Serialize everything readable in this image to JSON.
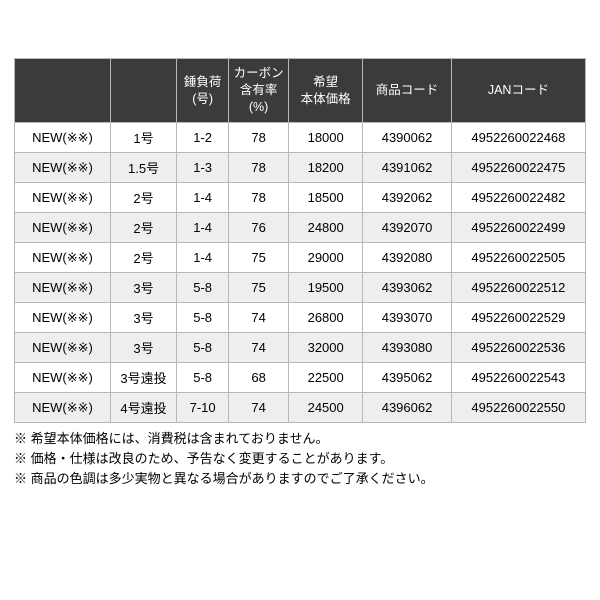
{
  "table": {
    "type": "table",
    "header_bg": "#3b3b3b",
    "header_fg": "#ffffff",
    "row_bg_odd": "#ffffff",
    "row_bg_even": "#eeeef1",
    "border_color": "#b7b7b7",
    "col_widths_pct": [
      16.8,
      11.6,
      9.1,
      10.5,
      13.0,
      15.5,
      23.5
    ],
    "columns": [
      "",
      "",
      "錘負荷\n(号)",
      "カーボン\n含有率\n(%)",
      "希望\n本体価格",
      "商品コード",
      "JANコード"
    ],
    "rows": [
      [
        "NEW(※※)",
        "1号",
        "1-2",
        "78",
        "18000",
        "4390062",
        "4952260022468"
      ],
      [
        "NEW(※※)",
        "1.5号",
        "1-3",
        "78",
        "18200",
        "4391062",
        "4952260022475"
      ],
      [
        "NEW(※※)",
        "2号",
        "1-4",
        "78",
        "18500",
        "4392062",
        "4952260022482"
      ],
      [
        "NEW(※※)",
        "2号",
        "1-4",
        "76",
        "24800",
        "4392070",
        "4952260022499"
      ],
      [
        "NEW(※※)",
        "2号",
        "1-4",
        "75",
        "29000",
        "4392080",
        "4952260022505"
      ],
      [
        "NEW(※※)",
        "3号",
        "5-8",
        "75",
        "19500",
        "4393062",
        "4952260022512"
      ],
      [
        "NEW(※※)",
        "3号",
        "5-8",
        "74",
        "26800",
        "4393070",
        "4952260022529"
      ],
      [
        "NEW(※※)",
        "3号",
        "5-8",
        "74",
        "32000",
        "4393080",
        "4952260022536"
      ],
      [
        "NEW(※※)",
        "3号遠投",
        "5-8",
        "68",
        "22500",
        "4395062",
        "4952260022543"
      ],
      [
        "NEW(※※)",
        "4号遠投",
        "7-10",
        "74",
        "24500",
        "4396062",
        "4952260022550"
      ]
    ]
  },
  "notes": [
    "※ 希望本体価格には、消費税は含まれておりません。",
    "※ 価格・仕様は改良のため、予告なく変更することがあります。",
    "※ 商品の色調は多少実物と異なる場合がありますのでご了承ください。"
  ]
}
